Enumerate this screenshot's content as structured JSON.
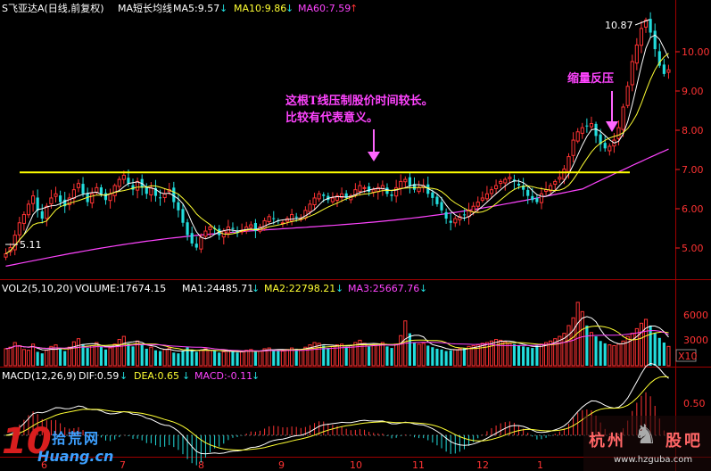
{
  "header_price": {
    "title": "S飞亚达A(日线,前复权)",
    "ma_label": "MA短长均线",
    "ma5": "MA5:9.57",
    "ma10": "MA10:9.86",
    "ma60": "MA60:7.59",
    "arrow_down": "↓",
    "arrow_up": "↑"
  },
  "header_vol": {
    "title": "VOL2(5,10,20)",
    "volume": "VOLUME:17674.15",
    "ma1": "MA1:24485.71",
    "ma2": "MA2:22798.21",
    "ma3": "MA3:25667.76",
    "arrow_down": "↓"
  },
  "header_macd": {
    "title": "MACD(12,26,9)",
    "dif": "DIF:0.59",
    "dea": "DEA:0.65",
    "macd": "MACD:-0.11",
    "arrow_down": "↓"
  },
  "price_axis": [
    "10.00",
    "9.00",
    "8.00",
    "7.00",
    "6.00",
    "5.00"
  ],
  "vol_axis": [
    "6000",
    "3000"
  ],
  "vol_unit": "X10",
  "macd_axis": [
    "0.50"
  ],
  "month_labels": [
    "6",
    "7",
    "8",
    "9",
    "10",
    "11",
    "12",
    "1"
  ],
  "price_high_label": "10.87",
  "price_low_label": "5.11",
  "annotation_resistance": {
    "line1": "这根T线压制股价时间较长。",
    "line2": "比较有代表意义。"
  },
  "annotation_pullback": "缩量反压",
  "colors": {
    "up": "#ff3333",
    "down": "#22dddd",
    "ma_short": "#ffffff",
    "ma_mid": "#ffff33",
    "ma_long": "#ff44ff",
    "trendline": "#ffff00",
    "axis_red": "#ff2222"
  },
  "watermark_left": {
    "big": "10",
    "cn": "拾荒网",
    "url": "Huang.cn"
  },
  "watermark_right": {
    "cn1": "杭州",
    "cn2": "股吧",
    "url": "www.hzguba.com"
  },
  "chart_data": {
    "type": "candlestick",
    "title": "S飞亚达A(日线,前复权)",
    "trendline_level": 7.12,
    "annotations": [
      {
        "text": "这根T线压制股价时间较长。比较有代表意义。",
        "target": "horizontal resistance line at ~7.12"
      },
      {
        "text": "缩量反压",
        "target": "pullback near 7.7"
      }
    ],
    "price_range": [
      4.6,
      10.9
    ],
    "high": 10.87,
    "low": 5.11,
    "ma_latest": {
      "MA5": 9.57,
      "MA10": 9.86,
      "MA60": 7.59
    },
    "vol_latest": {
      "VOLUME": 17674.15,
      "MA1": 24485.71,
      "MA2": 22798.21,
      "MA3": 25667.76
    },
    "macd_latest": {
      "DIF": 0.59,
      "DEA": 0.65,
      "MACD": -0.11
    },
    "close_series": [
      5.15,
      5.3,
      5.6,
      5.9,
      6.1,
      6.35,
      6.55,
      6.2,
      6.0,
      6.3,
      6.5,
      6.6,
      6.4,
      6.3,
      6.5,
      6.7,
      6.85,
      6.6,
      6.4,
      6.6,
      6.75,
      6.6,
      6.45,
      6.6,
      6.8,
      6.95,
      7.05,
      6.85,
      6.7,
      6.9,
      6.75,
      6.6,
      6.75,
      6.55,
      6.5,
      6.6,
      6.7,
      6.4,
      6.2,
      5.9,
      5.6,
      5.4,
      5.3,
      5.55,
      5.7,
      5.8,
      5.75,
      5.6,
      5.7,
      5.8,
      5.75,
      5.65,
      5.7,
      5.8,
      5.85,
      5.7,
      5.8,
      5.95,
      6.05,
      6.0,
      5.95,
      5.9,
      6.0,
      6.1,
      6.05,
      6.0,
      6.2,
      6.35,
      6.5,
      6.6,
      6.55,
      6.45,
      6.5,
      6.55,
      6.6,
      6.5,
      6.55,
      6.7,
      6.8,
      6.75,
      6.65,
      6.7,
      6.75,
      6.8,
      6.6,
      6.55,
      6.75,
      6.9,
      6.95,
      6.8,
      6.7,
      6.75,
      6.8,
      6.6,
      6.5,
      6.35,
      6.2,
      6.0,
      5.9,
      6.0,
      6.05,
      6.1,
      6.2,
      6.3,
      6.4,
      6.5,
      6.6,
      6.7,
      6.8,
      6.9,
      6.95,
      7.0,
      6.9,
      6.8,
      6.7,
      6.55,
      6.45,
      6.4,
      6.6,
      6.7,
      6.8,
      6.9,
      7.0,
      7.2,
      7.5,
      7.9,
      8.1,
      8.2,
      8.25,
      8.3,
      8.0,
      7.8,
      7.7,
      7.75,
      7.9,
      8.2,
      8.7,
      9.2,
      9.8,
      10.2,
      10.6,
      10.8,
      10.5,
      10.1,
      9.7,
      9.5,
      9.6
    ],
    "volume_series": [
      2200,
      2400,
      3000,
      2600,
      2100,
      2000,
      2800,
      1800,
      1600,
      2000,
      2500,
      2700,
      2200,
      1900,
      2400,
      3100,
      3500,
      2800,
      2300,
      2600,
      3000,
      2500,
      2100,
      2300,
      2800,
      3400,
      3800,
      2900,
      2500,
      3200,
      2700,
      2200,
      2400,
      2000,
      1900,
      2100,
      2300,
      1700,
      1600,
      1900,
      2400,
      2100,
      1800,
      2000,
      2200,
      2000,
      1900,
      1700,
      1800,
      2000,
      1900,
      1700,
      1800,
      2000,
      2100,
      1800,
      1900,
      2200,
      2300,
      2100,
      2000,
      1900,
      2100,
      2300,
      2200,
      2000,
      2400,
      2700,
      3000,
      2900,
      2600,
      2300,
      2500,
      2700,
      2800,
      2400,
      2600,
      3000,
      3300,
      2900,
      2500,
      2700,
      2800,
      3000,
      2500,
      2300,
      2800,
      3900,
      5800,
      4200,
      3000,
      2800,
      2900,
      2600,
      2400,
      2200,
      2100,
      1900,
      2000,
      2100,
      2200,
      2300,
      2500,
      2600,
      2700,
      2900,
      3000,
      3200,
      3400,
      3300,
      3100,
      2900,
      2800,
      2600,
      2500,
      2400,
      2300,
      2600,
      2800,
      3000,
      3200,
      3500,
      3800,
      4200,
      5200,
      6200,
      8200,
      7000,
      5200,
      4300,
      3800,
      3200,
      2900,
      2700,
      2600,
      2800,
      3200,
      3800,
      4200,
      4800,
      5500,
      6000,
      5200,
      4200,
      3600,
      3000,
      2500
    ]
  }
}
